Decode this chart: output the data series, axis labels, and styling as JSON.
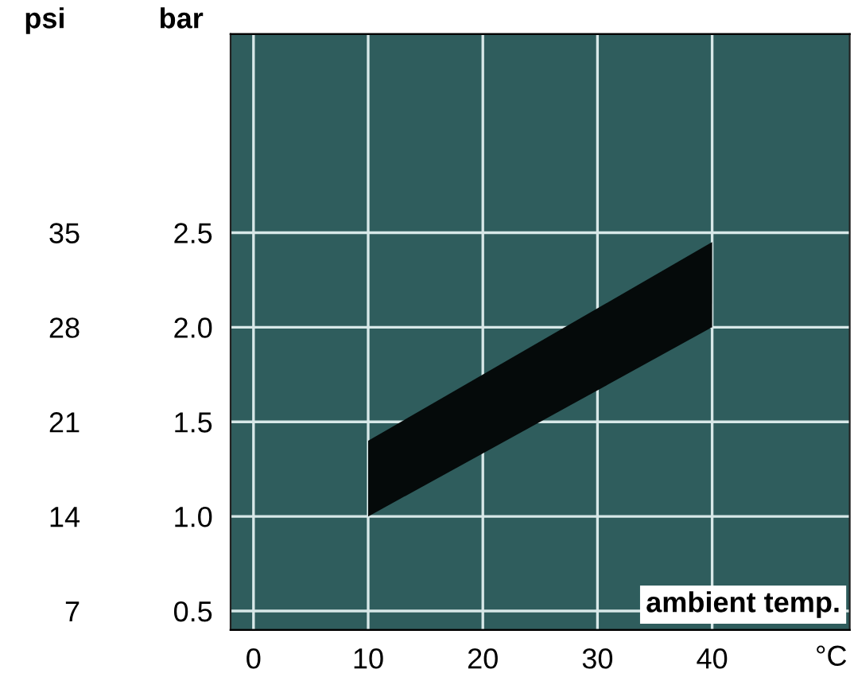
{
  "chart_data": {
    "type": "line",
    "xlabel": "°C",
    "ylabel": "bar",
    "y2label": "psi",
    "xlim": [
      -2,
      52
    ],
    "xticks": [
      0,
      10,
      20,
      30,
      40
    ],
    "ylim": [
      0.4,
      3.55
    ],
    "yticks": [
      0.5,
      {
        "value": 1,
        "label": "1.0"
      },
      1.5,
      {
        "value": 2,
        "label": "2.0"
      },
      2.5
    ],
    "y2lim": [
      5.6,
      49.7
    ],
    "y2ticks": [
      7,
      14,
      21,
      28,
      35
    ],
    "grid": true,
    "series": [
      {
        "color": "#050a0a",
        "x": [
          10,
          40
        ],
        "values": [
          null,
          null
        ],
        "lower": [
          1.0,
          2.0
        ],
        "upper": [
          1.4,
          2.45
        ]
      }
    ],
    "annotations": [
      "ambient temp."
    ]
  }
}
